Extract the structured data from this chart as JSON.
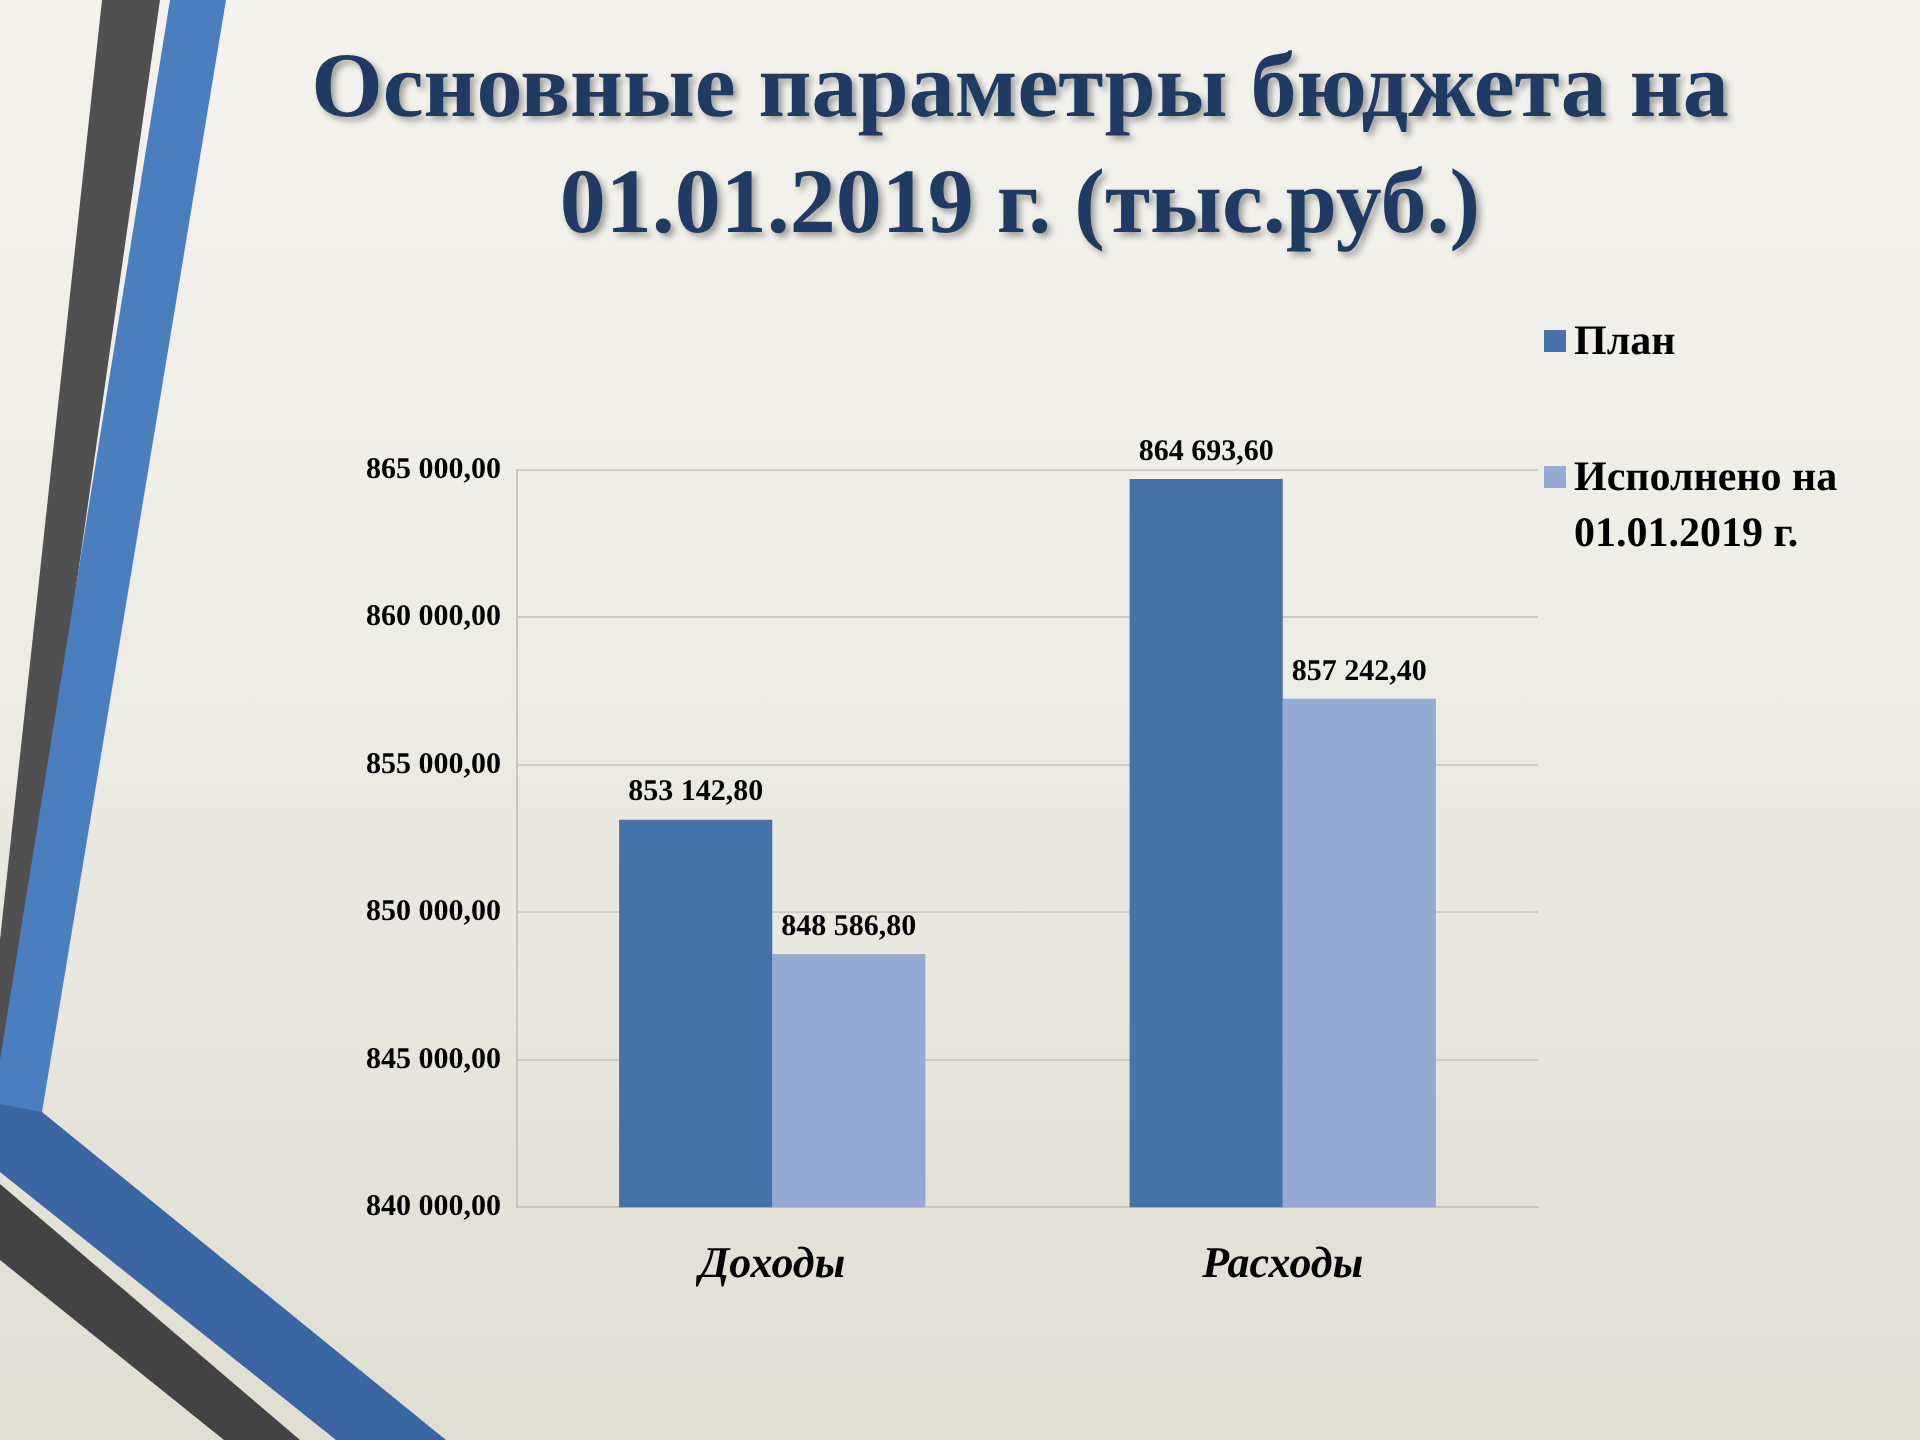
{
  "chart_data": {
    "type": "bar",
    "title": "Основные параметры бюджета на 01.01.2019 г. (тыс.руб.)",
    "categories": [
      "Доходы",
      "Расходы"
    ],
    "series": [
      {
        "name": "План",
        "color": "#4672aa",
        "values": [
          853142.8,
          864693.6
        ],
        "value_labels": [
          "853 142,80",
          "864 693,60"
        ]
      },
      {
        "name": "Исполнено на 01.01.2019 г.",
        "color": "#94aad3",
        "values": [
          848586.8,
          857242.4
        ],
        "value_labels": [
          "848 586,80",
          "857 242,40"
        ]
      }
    ],
    "ylim": [
      840000,
      865000
    ],
    "yticks": [
      {
        "value": 840000,
        "label": "840 000,00"
      },
      {
        "value": 845000,
        "label": "845 000,00"
      },
      {
        "value": 850000,
        "label": "850 000,00"
      },
      {
        "value": 855000,
        "label": "855 000,00"
      },
      {
        "value": 860000,
        "label": "860 000,00"
      },
      {
        "value": 865000,
        "label": "865 000,00"
      }
    ],
    "grid": "y",
    "legend": "top right"
  }
}
